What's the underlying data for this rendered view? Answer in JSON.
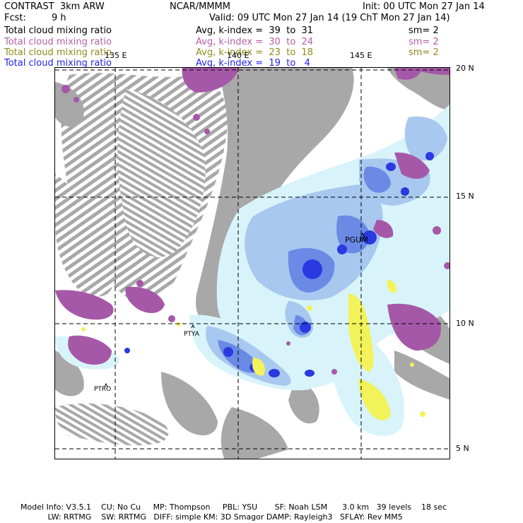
{
  "header": {
    "model": "CONTRAST  3km ARW",
    "org": "NCAR/MMMM",
    "init": "Init: 00 UTC Mon 27 Jan 14",
    "fcst_label": "Fcst:",
    "fcst_value": "9 h",
    "valid": "Valid: 09 UTC Mon 27 Jan 14 (19 ChT Mon 27 Jan 14)"
  },
  "fields": [
    {
      "name": "Total cloud mixing ratio",
      "avg": "Avg, k-index =  39  to  31",
      "sm": "sm= 2",
      "color": "#000000"
    },
    {
      "name": "Total cloud mixing ratio",
      "avg": "Avg, k-index =  30  to  24",
      "sm": "sm= 2",
      "color": "#b65ea8"
    },
    {
      "name": "Total cloud mixing ratio",
      "avg": "Avg, k-index =  23  to  18",
      "sm": "sm= 2",
      "color": "#8f8a1c"
    },
    {
      "name": "Total cloud mixing ratio",
      "avg": "Avg, k-index =  19  to   4",
      "sm": "",
      "color": "#2222ee"
    }
  ],
  "map": {
    "lon_labels": [
      "135 E",
      "140 E",
      "145 E"
    ],
    "lat_labels": [
      "20 N",
      "15 N",
      "10 N",
      "5 N"
    ],
    "stations": [
      "PGUM",
      "PTYA",
      "PTRO"
    ],
    "colors": {
      "gray": "#a8a8a8",
      "magenta": "#a658a8",
      "yellow": "#f2f25a",
      "light_cyan": "#d8f4fa",
      "light_blue": "#a8c8f0",
      "mid_blue": "#6a8ae6",
      "blue": "#2a3ae0"
    }
  },
  "footer": {
    "line1": "Model Info: V3.5.1    CU: No Cu     MP: Thompson     PBL: YSU       SF: Noah LSM      3.0 km   39 levels    18 sec",
    "line2": "           LW: RRTMG    SW: RRTMG   DIFF: simple KM: 3D Smagor DAMP: Rayleigh3   SFLAY: Rev MM5"
  }
}
